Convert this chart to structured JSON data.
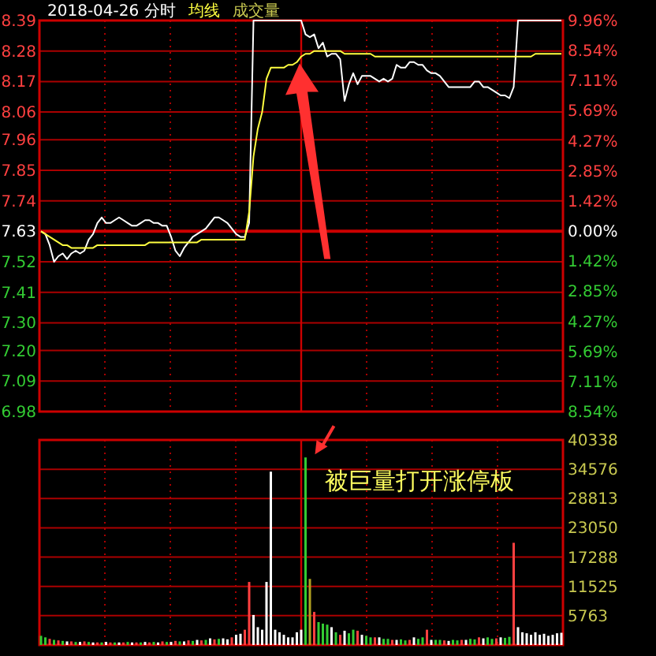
{
  "chart_data": [
    {
      "type": "line",
      "title": "2018-04-26 分时",
      "grid": true,
      "annotations": [
        "成交量"
      ],
      "categories": [
        null,
        null,
        null,
        null,
        null,
        null,
        null,
        null,
        null,
        null,
        null,
        null,
        null,
        null,
        null,
        null,
        null,
        null,
        null,
        null,
        null,
        null,
        null,
        null,
        null,
        null,
        null,
        null,
        null,
        null,
        null,
        null,
        null,
        null,
        null,
        null,
        null,
        null,
        null,
        null,
        null,
        null,
        null,
        null,
        null,
        null,
        null,
        null,
        null,
        null,
        null,
        null,
        null,
        null,
        null,
        null,
        null,
        null,
        null,
        null,
        null,
        null,
        null,
        null,
        null,
        null,
        null,
        null,
        null,
        null,
        null,
        null,
        null,
        null,
        null,
        null,
        null,
        null,
        null,
        null,
        null,
        null,
        null,
        null,
        null,
        null,
        null,
        null,
        null,
        null,
        null,
        null,
        null,
        null,
        null,
        null,
        null,
        null,
        null,
        null,
        null,
        null,
        null,
        null,
        null,
        null,
        null,
        null,
        null,
        null,
        null,
        null,
        null,
        null,
        null,
        null,
        null,
        null,
        null,
        null,
        null
      ],
      "ylim": [
        6.98,
        8.39
      ],
      "yticks": [
        8.39,
        8.28,
        8.17,
        8.06,
        7.96,
        7.85,
        7.74,
        7.63,
        7.52,
        7.41,
        {
          "value": 7.3,
          "label": "7.30"
        },
        {
          "value": 7.2,
          "label": "7.20"
        },
        7.09,
        6.98
      ],
      "y2lim": [
        -8.54,
        9.96
      ],
      "y2ticks": [
        {
          "value": 9.96,
          "label": "9.96%"
        },
        {
          "value": 8.54,
          "label": "8.54%"
        },
        {
          "value": 7.11,
          "label": "7.11%"
        },
        {
          "value": 5.69,
          "label": "5.69%"
        },
        {
          "value": 4.27,
          "label": "4.27%"
        },
        {
          "value": 2.85,
          "label": "2.85%"
        },
        {
          "value": 1.42,
          "label": "1.42%"
        },
        {
          "value": 0,
          "label": "0.00%"
        },
        {
          "value": -1.42,
          "label": "1.42%"
        },
        {
          "value": -2.85,
          "label": "2.85%"
        },
        {
          "value": -4.27,
          "label": "4.27%"
        },
        {
          "value": -5.69,
          "label": "5.69%"
        },
        {
          "value": -7.11,
          "label": "7.11%"
        },
        {
          "value": -8.54,
          "label": "8.54%"
        }
      ],
      "ref_lines": [
        {
          "axis": "y",
          "value": 7.63,
          "color": "#cc0000"
        }
      ],
      "series": [
        {
          "color": "#ffffff",
          "values": [
            7.63,
            7.62,
            7.58,
            7.52,
            7.54,
            7.55,
            7.53,
            7.55,
            7.56,
            7.55,
            7.56,
            7.6,
            7.62,
            7.66,
            7.68,
            7.66,
            7.66,
            7.67,
            7.68,
            7.67,
            7.66,
            7.65,
            7.65,
            7.66,
            7.67,
            7.67,
            7.66,
            7.66,
            7.65,
            7.65,
            7.61,
            7.56,
            7.54,
            7.57,
            7.59,
            7.61,
            7.62,
            7.63,
            7.64,
            7.66,
            7.68,
            7.68,
            7.67,
            7.66,
            7.64,
            7.62,
            7.61,
            7.61,
            7.66,
            8.39,
            8.39,
            8.39,
            8.39,
            8.39,
            8.39,
            8.39,
            8.39,
            8.39,
            8.39,
            8.39,
            8.39,
            8.34,
            8.33,
            8.34,
            8.29,
            8.31,
            8.26,
            8.27,
            8.27,
            8.25,
            8.1,
            8.16,
            8.2,
            8.16,
            8.19,
            8.19,
            8.19,
            8.18,
            8.17,
            8.18,
            8.17,
            8.18,
            8.23,
            8.22,
            8.22,
            8.24,
            8.24,
            8.23,
            8.23,
            8.21,
            8.2,
            8.2,
            8.19,
            8.17,
            8.15,
            8.15,
            8.15,
            8.15,
            8.15,
            8.15,
            8.17,
            8.17,
            8.15,
            8.15,
            8.14,
            8.13,
            8.12,
            8.12,
            8.11,
            8.15,
            8.39,
            8.39,
            8.39,
            8.39,
            8.39,
            8.39,
            8.39,
            8.39,
            8.39,
            8.39,
            8.39
          ]
        },
        {
          "name": "均线",
          "color": "#ffff40",
          "values": [
            7.63,
            7.62,
            7.61,
            7.6,
            7.59,
            7.58,
            7.58,
            7.57,
            7.57,
            7.57,
            7.57,
            7.57,
            7.57,
            7.58,
            7.58,
            7.58,
            7.58,
            7.58,
            7.58,
            7.58,
            7.58,
            7.58,
            7.58,
            7.58,
            7.58,
            7.59,
            7.59,
            7.59,
            7.59,
            7.59,
            7.59,
            7.59,
            7.59,
            7.59,
            7.59,
            7.59,
            7.59,
            7.6,
            7.6,
            7.6,
            7.6,
            7.6,
            7.6,
            7.6,
            7.6,
            7.6,
            7.6,
            7.6,
            7.7,
            7.9,
            8.0,
            8.06,
            8.18,
            8.22,
            8.22,
            8.22,
            8.22,
            8.23,
            8.23,
            8.24,
            8.26,
            8.27,
            8.27,
            8.28,
            8.28,
            8.28,
            8.28,
            8.28,
            8.28,
            8.28,
            8.27,
            8.27,
            8.27,
            8.27,
            8.27,
            8.27,
            8.27,
            8.26,
            8.26,
            8.26,
            8.26,
            8.26,
            8.26,
            8.26,
            8.26,
            8.26,
            8.26,
            8.26,
            8.26,
            8.26,
            8.26,
            8.26,
            8.26,
            8.26,
            8.26,
            8.26,
            8.26,
            8.26,
            8.26,
            8.26,
            8.26,
            8.26,
            8.26,
            8.26,
            8.26,
            8.26,
            8.26,
            8.26,
            8.26,
            8.26,
            8.26,
            8.26,
            8.26,
            8.26,
            8.27,
            8.27,
            8.27,
            8.27,
            8.27,
            8.27,
            8.27
          ]
        }
      ]
    },
    {
      "type": "bar",
      "grid": true,
      "categories": [
        null,
        null,
        null,
        null,
        null,
        null,
        null,
        null,
        null,
        null,
        null,
        null,
        null,
        null,
        null,
        null,
        null,
        null,
        null,
        null,
        null,
        null,
        null,
        null,
        null,
        null,
        null,
        null,
        null,
        null,
        null,
        null,
        null,
        null,
        null,
        null,
        null,
        null,
        null,
        null,
        null,
        null,
        null,
        null,
        null,
        null,
        null,
        null,
        null,
        null,
        null,
        null,
        null,
        null,
        null,
        null,
        null,
        null,
        null,
        null,
        null,
        null,
        null,
        null,
        null,
        null,
        null,
        null,
        null,
        null,
        null,
        null,
        null,
        null,
        null,
        null,
        null,
        null,
        null,
        null,
        null,
        null,
        null,
        null,
        null,
        null,
        null,
        null,
        null,
        null,
        null,
        null,
        null,
        null,
        null,
        null,
        null,
        null,
        null,
        null,
        null,
        null,
        null,
        null,
        null,
        null,
        null,
        null,
        null,
        null,
        null,
        null,
        null,
        null,
        null,
        null,
        null,
        null,
        null,
        null,
        null
      ],
      "ylim": [
        0,
        40338
      ],
      "yticks": [
        5763,
        11525,
        17288,
        23050,
        28813,
        34576,
        40338
      ],
      "annotations": [
        "被巨量打开涨停板"
      ],
      "series": [
        {
          "values": [
            1800,
            1500,
            1200,
            1000,
            900,
            800,
            700,
            700,
            600,
            600,
            700,
            600,
            500,
            500,
            500,
            600,
            500,
            500,
            500,
            500,
            600,
            500,
            500,
            500,
            600,
            500,
            600,
            500,
            700,
            600,
            600,
            800,
            700,
            700,
            900,
            800,
            1000,
            900,
            1000,
            1300,
            1100,
            1200,
            1300,
            1100,
            1500,
            2000,
            2200,
            3000,
            12400,
            5900,
            3500,
            3000,
            12400,
            34100,
            3000,
            2500,
            2000,
            1500,
            1500,
            2500,
            3000,
            36900,
            13000,
            6500,
            4500,
            4200,
            4000,
            3500,
            2500,
            2000,
            2800,
            2300,
            3000,
            2800,
            2000,
            1800,
            1500,
            1500,
            1500,
            1200,
            1200,
            1000,
            1000,
            1100,
            900,
            1000,
            1500,
            1200,
            1500,
            3000,
            1000,
            1000,
            1000,
            900,
            800,
            1000,
            900,
            1000,
            1000,
            1200,
            1100,
            1500,
            1300,
            1500,
            1200,
            1300,
            1500,
            1400,
            1600,
            20100,
            3500,
            2500,
            2300,
            2000,
            2500,
            2000,
            2200,
            1800,
            2000,
            2300,
            2400
          ],
          "colors": [
            "#33cc33",
            "#33cc33",
            "#ff4040",
            "#33cc33",
            "#ff4040",
            "#33cc33",
            "#ffffff",
            "#ff4040",
            "#33cc33",
            "#ffffff",
            "#ff4040",
            "#33cc33",
            "#ffffff",
            "#ff4040",
            "#33cc33",
            "#ffffff",
            "#ff4040",
            "#33cc33",
            "#ffffff",
            "#ff4040",
            "#33cc33",
            "#ffffff",
            "#ff4040",
            "#33cc33",
            "#ffffff",
            "#ff4040",
            "#33cc33",
            "#ffffff",
            "#ff4040",
            "#33cc33",
            "#ffffff",
            "#ff4040",
            "#33cc33",
            "#ffffff",
            "#ff4040",
            "#33cc33",
            "#ffffff",
            "#ff4040",
            "#33cc33",
            "#ffffff",
            "#ff4040",
            "#33cc33",
            "#ffffff",
            "#ffffff",
            "#ff4040",
            "#ffffff",
            "#ffffff",
            "#ff4040",
            "#ff4040",
            "#ffffff",
            "#ffffff",
            "#ffffff",
            "#ffffff",
            "#ffffff",
            "#ffffff",
            "#ffffff",
            "#ffffff",
            "#ffffff",
            "#ffffff",
            "#ffffff",
            "#ffffff",
            "#33cc33",
            "#b0a020",
            "#ff4040",
            "#33cc33",
            "#33cc33",
            "#33cc33",
            "#ffffff",
            "#33cc33",
            "#ff4040",
            "#ffffff",
            "#33cc33",
            "#33cc33",
            "#ff4040",
            "#ffffff",
            "#33cc33",
            "#33cc33",
            "#ff4040",
            "#ffffff",
            "#33cc33",
            "#33cc33",
            "#ff4040",
            "#ffffff",
            "#33cc33",
            "#33cc33",
            "#ff4040",
            "#ffffff",
            "#33cc33",
            "#33cc33",
            "#ff4040",
            "#ffffff",
            "#33cc33",
            "#33cc33",
            "#ff4040",
            "#ffffff",
            "#33cc33",
            "#33cc33",
            "#ff4040",
            "#ffffff",
            "#33cc33",
            "#33cc33",
            "#ff4040",
            "#ffffff",
            "#33cc33",
            "#33cc33",
            "#ff4040",
            "#ffffff",
            "#33cc33",
            "#33cc33",
            "#ff4040",
            "#ffffff",
            "#ffffff",
            "#ffffff",
            "#ffffff",
            "#ffffff",
            "#ffffff",
            "#ffffff",
            "#ffffff",
            "#ffffff",
            "#ffffff",
            "#ffffff"
          ]
        }
      ]
    }
  ]
}
